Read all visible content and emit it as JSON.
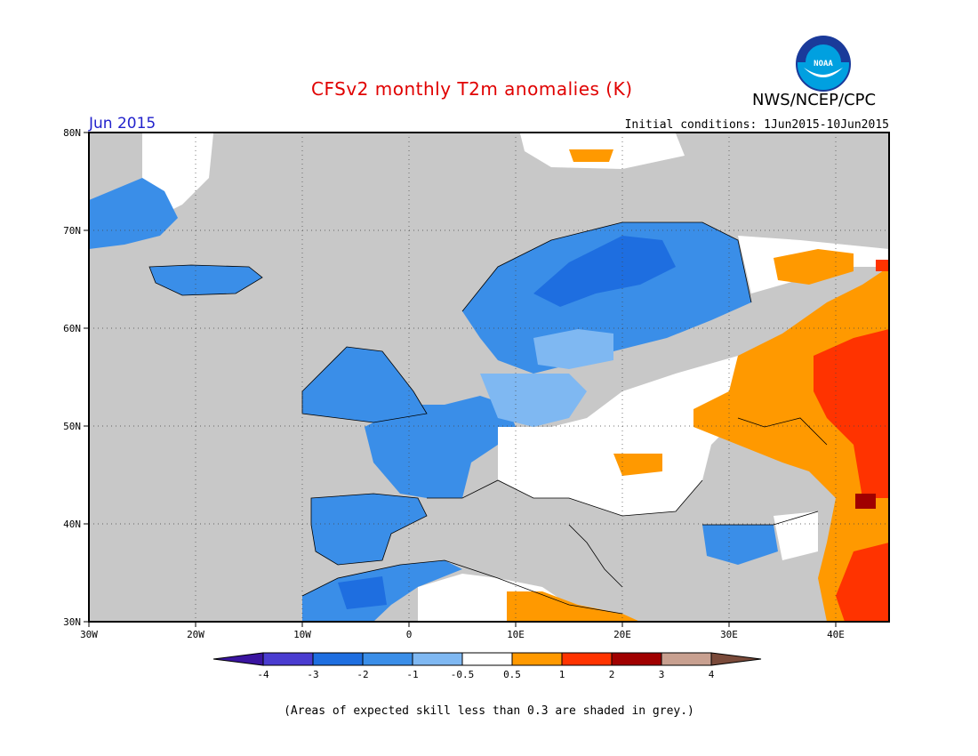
{
  "title": "CFSv2 monthly T2m anomalies (K)",
  "agency": "NWS/NCEP/CPC",
  "logo_text": "NOAA",
  "month": "Jun 2015",
  "initial_conditions": "Initial conditions: 1Jun2015-10Jun2015",
  "note": "(Areas of expected skill less than 0.3 are shaded in grey.)",
  "map": {
    "lon_range": [
      -30,
      45
    ],
    "lat_range": [
      30,
      80
    ],
    "lat_labels": [
      "80N",
      "70N",
      "60N",
      "50N",
      "40N",
      "30N"
    ],
    "lon_labels": [
      "30W",
      "20W",
      "10W",
      "0",
      "10E",
      "20E",
      "30E",
      "40E"
    ],
    "background_color": "#c8c8c8",
    "regions": [
      {
        "name": "nordic-strong-cool",
        "class": "-3..-2",
        "color": "#1e6ee0"
      },
      {
        "name": "scandinavia-cool",
        "class": "-2..-1",
        "color": "#3a8ee8"
      },
      {
        "name": "western-europe-cool",
        "class": "-2..-1",
        "color": "#3a8ee8"
      },
      {
        "name": "central-europe-slight-cool",
        "class": "-1..-0.5",
        "color": "#7fb8f2"
      },
      {
        "name": "eastern-europe-near-normal",
        "class": "-0.5..0.5",
        "color": "#ffffff"
      },
      {
        "name": "russia-warm",
        "class": "0.5..1",
        "color": "#ff9900"
      },
      {
        "name": "russia-strong-warm",
        "class": "1..2",
        "color": "#ff3300"
      }
    ]
  },
  "colorbar": {
    "labels": [
      "-4",
      "-3",
      "-2",
      "-1",
      "-0.5",
      "0.5",
      "1",
      "2",
      "3",
      "4"
    ],
    "colors": [
      "#3a14a0",
      "#4a3cd0",
      "#1e6ee0",
      "#3a8ee8",
      "#7fb8f2",
      "#ffffff",
      "#ff9900",
      "#ff3300",
      "#a00000",
      "#c8a090",
      "#7a4a3a"
    ]
  }
}
